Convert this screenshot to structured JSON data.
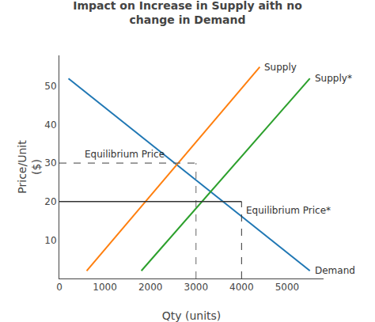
{
  "chart_data": {
    "type": "line",
    "title": "Impact on Increase in Supply aith no\nchange in Demand",
    "xlabel": "Qty (units)",
    "ylabel": "Price/Unit\n($)",
    "xlim": [
      0,
      5800
    ],
    "ylim": [
      0,
      58
    ],
    "xticks": [
      0,
      1000,
      2000,
      3000,
      4000,
      5000
    ],
    "yticks": [
      10,
      20,
      30,
      40,
      50
    ],
    "grid": false,
    "series": [
      {
        "name": "Demand",
        "x": [
          200,
          5500
        ],
        "values": [
          52,
          2
        ]
      },
      {
        "name": "Supply",
        "x": [
          600,
          4400
        ],
        "values": [
          2,
          55
        ]
      },
      {
        "name": "Supply*",
        "x": [
          1800,
          5500
        ],
        "values": [
          2,
          52
        ]
      }
    ],
    "annotations": [
      {
        "text": "Equilibrium Price",
        "x": 3000,
        "y": 30,
        "line_style": "dashed",
        "color": "#666666"
      },
      {
        "text": "Equilibrium Price*",
        "x": 4000,
        "y": 20,
        "line_style": "solid",
        "color": "#333333"
      }
    ]
  }
}
